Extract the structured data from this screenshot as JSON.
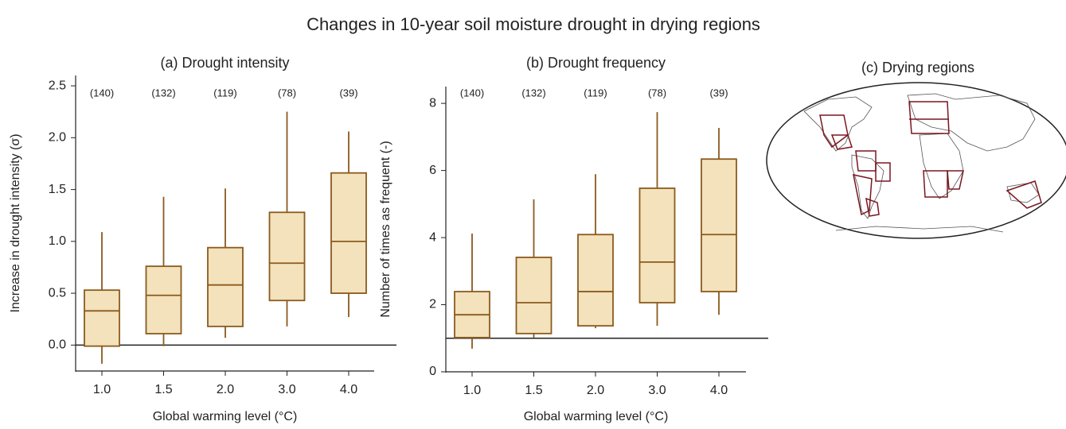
{
  "title": "Changes in 10-year soil moisture drought in drying regions",
  "chart_data": [
    {
      "type": "box",
      "title": "(a)  Drought intensity",
      "x_label": "Global warming level (°C)",
      "y_label": "Increase in drought intensity (σ)",
      "categories": [
        "1.0",
        "1.5",
        "2.0",
        "3.0",
        "4.0"
      ],
      "annotations": [
        "(140)",
        "(132)",
        "(119)",
        "(78)",
        "(39)"
      ],
      "boxes": [
        {
          "low": -0.18,
          "q1": -0.01,
          "median": 0.33,
          "q3": 0.53,
          "high": 1.09
        },
        {
          "low": -0.01,
          "q1": 0.11,
          "median": 0.48,
          "q3": 0.76,
          "high": 1.43
        },
        {
          "low": 0.07,
          "q1": 0.18,
          "median": 0.58,
          "q3": 0.94,
          "high": 1.51
        },
        {
          "low": 0.18,
          "q1": 0.43,
          "median": 0.79,
          "q3": 1.28,
          "high": 2.25
        },
        {
          "low": 0.27,
          "q1": 0.5,
          "median": 1.0,
          "q3": 1.66,
          "high": 2.06
        }
      ],
      "reference_line": 0,
      "color": "#8b5a1e",
      "fill": "#f3e2bb",
      "ylim": [
        -0.25,
        2.6
      ],
      "yticks": [
        {
          "value": 0,
          "label": "0.0"
        },
        0.5,
        {
          "value": 1,
          "label": "1.0"
        },
        1.5,
        {
          "value": 2,
          "label": "2.0"
        },
        2.5
      ]
    },
    {
      "type": "box",
      "title": "(b) Drought frequency",
      "x_label": "Global warming level (°C)",
      "y_label": "Number of times as frequent (-)",
      "categories": [
        "1.0",
        "1.5",
        "2.0",
        "3.0",
        "4.0"
      ],
      "annotations": [
        "(140)",
        "(132)",
        "(119)",
        "(78)",
        "(39)"
      ],
      "boxes": [
        {
          "low": 0.69,
          "q1": 1.02,
          "median": 1.7,
          "q3": 2.39,
          "high": 4.12
        },
        {
          "low": 1.02,
          "q1": 1.14,
          "median": 2.06,
          "q3": 3.41,
          "high": 5.14
        },
        {
          "low": 1.3,
          "q1": 1.37,
          "median": 2.39,
          "q3": 4.09,
          "high": 5.89
        },
        {
          "low": 1.37,
          "q1": 2.06,
          "median": 3.27,
          "q3": 5.47,
          "high": 7.74
        },
        {
          "low": 1.7,
          "q1": 2.39,
          "median": 4.09,
          "q3": 6.34,
          "high": 7.27
        }
      ],
      "reference_line": 1,
      "color": "#8b5a1e",
      "fill": "#f3e2bb",
      "ylim": [
        0,
        8.5
      ],
      "yticks": [
        0,
        2,
        4,
        6,
        8
      ]
    }
  ],
  "map": {
    "title": "(c) Drying regions"
  }
}
